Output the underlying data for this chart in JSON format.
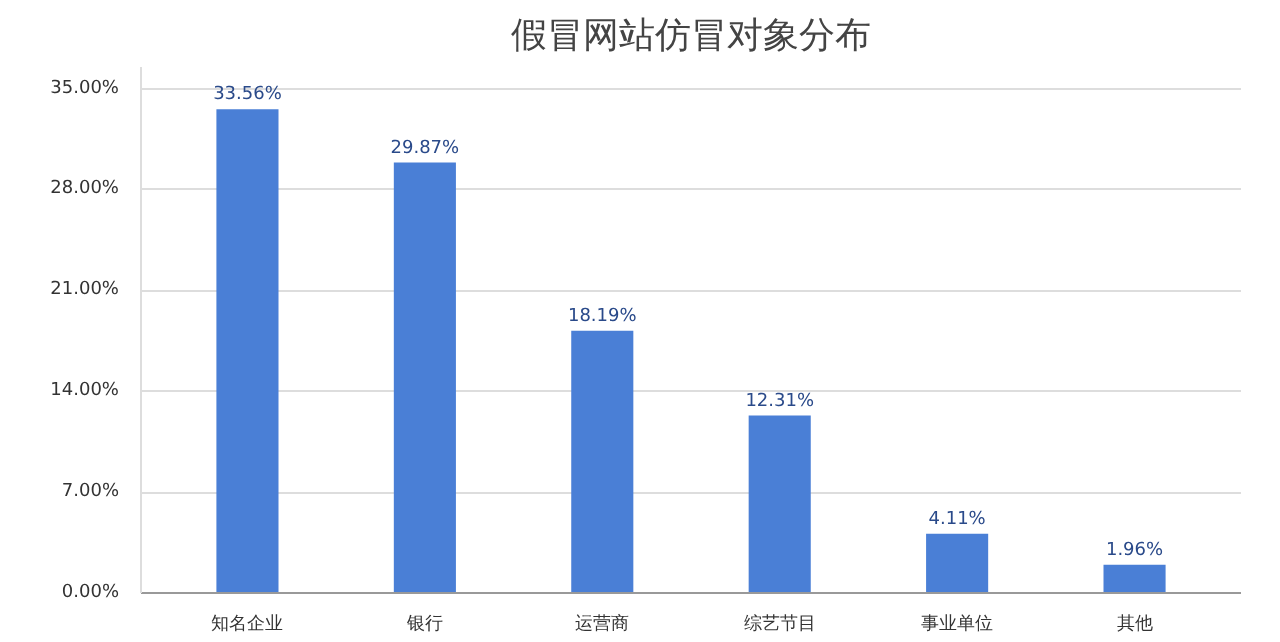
{
  "chart_data": {
    "type": "bar",
    "title": "假冒网站仿冒对象分布",
    "categories": [
      "知名企业",
      "银行",
      "运营商",
      "综艺节目",
      "事业单位",
      "其他"
    ],
    "values": [
      33.56,
      29.87,
      18.19,
      12.31,
      4.11,
      1.96
    ],
    "value_labels": [
      "33.56%",
      "29.87%",
      "18.19%",
      "12.31%",
      "4.11%",
      "1.96%"
    ],
    "color": "#4a7fd6",
    "ylim": [
      0,
      36.5
    ],
    "yticks": [
      {
        "value": 0,
        "label": "0.00%"
      },
      {
        "value": 7,
        "label": "7.00%"
      },
      {
        "value": 14,
        "label": "14.00%"
      },
      {
        "value": 21,
        "label": "21.00%"
      },
      {
        "value": 28,
        "label": "28.00%"
      },
      {
        "value": 35,
        "label": "35.00%"
      }
    ],
    "grid": "y"
  }
}
